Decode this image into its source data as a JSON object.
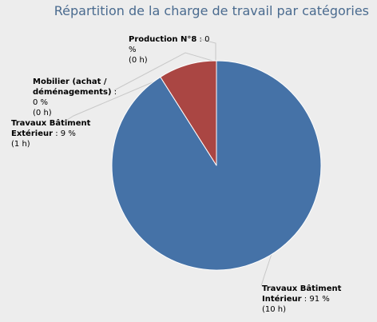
{
  "chart_data": {
    "type": "pie",
    "title": "Répartition de la charge de travail par catégories",
    "slices": [
      {
        "name": "Travaux Bâtiment Intérieur",
        "percent": 91,
        "percent_label": "91 %",
        "hours_label": "(10 h)",
        "color": "#4572a7"
      },
      {
        "name": "Travaux Bâtiment Extérieur",
        "percent": 9,
        "percent_label": "9 %",
        "hours_label": "(1 h)",
        "color": "#aa4643"
      },
      {
        "name": "Mobilier (achat / déménagements)",
        "percent": 0,
        "percent_label": "0 %",
        "hours_label": "(0 h)",
        "color": "#89a54e"
      },
      {
        "name": "Production N°8",
        "percent": 0,
        "percent_label": "0 %",
        "hours_label": "(0 h)",
        "color": "#80699b"
      }
    ]
  },
  "labels": {
    "production": {
      "name": "Production N°8",
      "sep": " : ",
      "pct_a": "0",
      "pct_b": "%",
      "hours": "(0 h)"
    },
    "mobilier": {
      "name_l1": "Mobilier (achat /",
      "name_l2": "déménagements)",
      "sep": " :",
      "pct": "0 %",
      "hours": "(0 h)"
    },
    "exterieur": {
      "name_l1": "Travaux Bâtiment",
      "name_l2": "Extérieur",
      "sep": " : ",
      "pct": "9 %",
      "hours": "(1 h)"
    },
    "interieur": {
      "name_l1": "Travaux Bâtiment",
      "name_l2": "Intérieur",
      "sep": " : ",
      "pct": "91 %",
      "hours": "(10 h)"
    }
  }
}
